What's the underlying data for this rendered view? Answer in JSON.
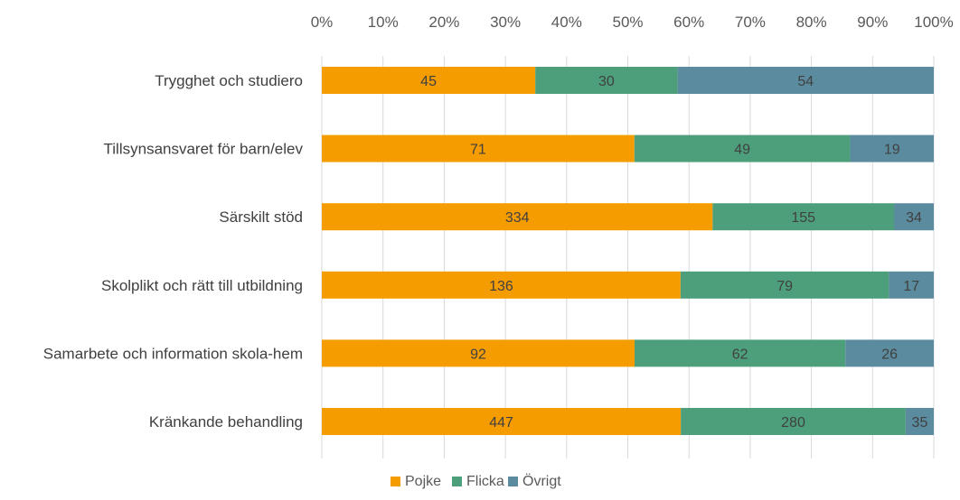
{
  "chart_data": {
    "type": "bar",
    "orientation": "horizontal",
    "stacked": "percent",
    "categories": [
      "Trygghet och studiero",
      "Tillsynsansvaret för barn/elev",
      "Särskilt stöd",
      "Skolplikt och rätt till utbildning",
      "Samarbete och information skola-hem",
      "Kränkande behandling"
    ],
    "series": [
      {
        "name": "Pojke",
        "color": "#f59c00",
        "values": [
          45,
          71,
          334,
          136,
          92,
          447
        ]
      },
      {
        "name": "Flicka",
        "color": "#4d9f7b",
        "values": [
          30,
          49,
          155,
          79,
          62,
          280
        ]
      },
      {
        "name": "Övrigt",
        "color": "#5b8b9e",
        "values": [
          54,
          19,
          34,
          17,
          26,
          35
        ]
      }
    ],
    "x_ticks": [
      "0%",
      "10%",
      "20%",
      "30%",
      "40%",
      "50%",
      "60%",
      "70%",
      "80%",
      "90%",
      "100%"
    ],
    "xlim": [
      0,
      100
    ],
    "x_axis_position": "top",
    "grid": true,
    "legend_position": "bottom",
    "title": "",
    "xlabel": "",
    "ylabel": ""
  }
}
